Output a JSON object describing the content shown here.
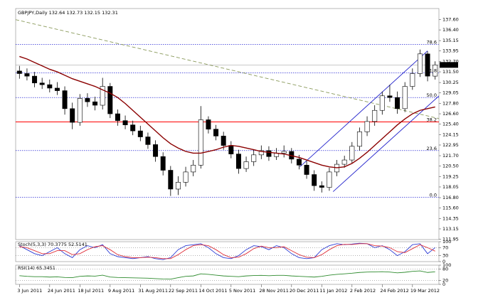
{
  "chart_data": [
    {
      "type": "candlestick",
      "title": "GBPJPY,Daily 132.64 132.73 132.15 132.31",
      "categories": [
        "3 Jun 2011",
        null,
        null,
        null,
        "24 Jun 2011",
        null,
        null,
        null,
        "18 Jul 2011",
        null,
        null,
        null,
        "9 Aug 2011",
        null,
        null,
        null,
        "31 Aug 2011",
        null,
        null,
        null,
        "22 Sep 2011",
        null,
        null,
        null,
        "14 Oct 2011",
        null,
        null,
        null,
        "5 Nov 2011",
        null,
        null,
        null,
        "28 Nov 2011",
        null,
        null,
        null,
        "20 Dec 2011",
        null,
        null,
        null,
        "11 Jan 2012",
        null,
        null,
        null,
        "2 Feb 2012",
        null,
        null,
        null,
        "24 Feb 2012",
        null,
        null,
        null,
        "19 Mar 2012",
        null,
        null,
        null
      ],
      "open": [
        131.6,
        131.3,
        131.0,
        130.2,
        130.0,
        129.6,
        129.3,
        127.2,
        125.6,
        128.4,
        128.0,
        127.6,
        129.8,
        126.6,
        125.8,
        125.3,
        124.6,
        123.9,
        123.0,
        121.6,
        120.0,
        117.8,
        118.6,
        119.8,
        120.6,
        125.9,
        124.8,
        124.0,
        122.9,
        121.9,
        120.2,
        121.0,
        121.8,
        122.3,
        121.6,
        122.0,
        122.2,
        121.3,
        120.6,
        119.5,
        118.2,
        118.0,
        119.8,
        120.7,
        121.2,
        122.8,
        124.5,
        125.7,
        127.0,
        128.7,
        128.5,
        127.2,
        129.8,
        131.3,
        133.6,
        131.0
      ],
      "high": [
        132.2,
        131.9,
        131.5,
        130.8,
        130.6,
        130.3,
        129.8,
        127.9,
        128.9,
        129.0,
        128.6,
        130.8,
        130.2,
        127.1,
        126.4,
        125.8,
        125.2,
        124.4,
        123.5,
        122.1,
        120.5,
        119.3,
        120.4,
        121.2,
        127.5,
        126.3,
        125.3,
        124.5,
        123.4,
        122.4,
        121.6,
        122.4,
        122.9,
        122.8,
        122.6,
        122.9,
        122.6,
        121.8,
        121.1,
        120.0,
        118.7,
        120.3,
        121.2,
        121.7,
        123.3,
        125.0,
        126.3,
        127.6,
        129.2,
        130.0,
        129.2,
        130.3,
        131.9,
        134.1,
        133.9,
        132.73
      ],
      "low": [
        130.7,
        130.5,
        129.7,
        129.5,
        129.1,
        128.8,
        126.5,
        124.8,
        125.2,
        127.4,
        127.0,
        127.1,
        126.1,
        125.2,
        124.8,
        124.1,
        123.4,
        122.5,
        121.0,
        119.4,
        117.0,
        117.1,
        118.1,
        119.3,
        120.2,
        124.3,
        123.5,
        122.4,
        121.4,
        119.6,
        119.8,
        120.5,
        121.3,
        121.1,
        121.2,
        121.5,
        120.8,
        120.1,
        119.0,
        117.6,
        117.4,
        117.6,
        119.3,
        120.3,
        120.8,
        122.3,
        124.0,
        125.2,
        126.5,
        128.0,
        126.6,
        126.8,
        129.4,
        130.9,
        130.4,
        130.6
      ],
      "close": [
        131.3,
        131.0,
        130.2,
        130.0,
        129.6,
        129.3,
        127.2,
        125.6,
        128.4,
        128.0,
        127.6,
        129.8,
        126.6,
        125.8,
        125.3,
        124.6,
        123.9,
        123.0,
        121.6,
        120.0,
        117.8,
        118.6,
        119.8,
        120.6,
        125.9,
        124.8,
        124.0,
        122.9,
        121.9,
        120.2,
        121.0,
        121.8,
        122.3,
        121.6,
        122.0,
        122.2,
        121.3,
        120.6,
        119.5,
        118.2,
        118.0,
        119.8,
        120.7,
        121.2,
        122.8,
        124.5,
        125.7,
        127.0,
        128.7,
        128.5,
        127.2,
        129.8,
        131.3,
        133.6,
        131.0,
        132.31
      ],
      "overlays": [
        {
          "color": "#8b0000",
          "values": [
            133.3,
            133.0,
            132.6,
            132.2,
            131.8,
            131.5,
            131.1,
            130.7,
            130.4,
            130.1,
            129.8,
            129.4,
            129.0,
            128.5,
            127.8,
            127.0,
            126.2,
            125.4,
            124.6,
            123.8,
            123.1,
            122.6,
            122.2,
            122.0,
            122.0,
            122.2,
            122.4,
            122.7,
            122.9,
            122.8,
            122.6,
            122.4,
            122.2,
            122.1,
            122.0,
            121.9,
            121.7,
            121.5,
            121.2,
            120.9,
            120.6,
            120.4,
            120.3,
            120.4,
            120.8,
            121.4,
            122.1,
            122.9,
            123.7,
            124.5,
            125.3,
            126.0,
            126.6,
            127.0,
            127.2,
            127.4
          ]
        }
      ],
      "fib_levels": {
        "labels": [
          "78.6",
          "61.8",
          "50.0",
          "38.2",
          "23.6",
          "0.0"
        ],
        "prices": [
          134.7,
          131.4,
          128.5,
          125.65,
          122.3,
          116.85
        ],
        "color": "#0000cc"
      },
      "support_line": {
        "value": 125.65,
        "color": "#ff0000"
      },
      "trendlines": [
        {
          "color": "#8a9a5b",
          "dashed": true,
          "start": [
            -0.5,
            137.6
          ],
          "end": [
            78.7,
            121.25
          ]
        },
        {
          "color": "#2222cc",
          "dashed": false,
          "start": [
            37.1,
            120.4
          ],
          "end": [
            54.0,
            133.95
          ]
        },
        {
          "color": "#2222cc",
          "dashed": false,
          "start": [
            41.5,
            117.5
          ],
          "end": [
            60.4,
            132.6
          ]
        }
      ],
      "ylim": [
        111.9,
        138.9
      ],
      "yticks": [
        {
          "value": 137.6,
          "label": "137.60"
        },
        {
          "value": 136.4,
          "label": "136.40"
        },
        {
          "value": 135.15,
          "label": "135.15"
        },
        {
          "value": 133.95,
          "label": "133.95"
        },
        {
          "value": 132.7,
          "label": "132.70"
        },
        {
          "value": 131.5,
          "label": "131.50"
        },
        {
          "value": 130.25,
          "label": "130.25"
        },
        {
          "value": 129.05,
          "label": "129.05"
        },
        {
          "value": 127.8,
          "label": "127.80"
        },
        {
          "value": 126.6,
          "label": "126.60"
        },
        {
          "value": 125.4,
          "label": "125.40"
        },
        {
          "value": 124.15,
          "label": "124.15"
        },
        {
          "value": 122.95,
          "label": "122.95"
        },
        {
          "value": 121.7,
          "label": "121.70"
        },
        {
          "value": 120.5,
          "label": "120.50"
        },
        {
          "value": 119.25,
          "label": "119.25"
        },
        {
          "value": 118.05,
          "label": "118.05"
        },
        {
          "value": 116.8,
          "label": "116.80"
        },
        {
          "value": 115.6,
          "label": "115.60"
        },
        {
          "value": 114.35,
          "label": "114.35"
        },
        {
          "value": 113.15,
          "label": "113.15"
        },
        {
          "value": 111.95,
          "label": "111.95"
        }
      ]
    },
    {
      "type": "line",
      "title": "Stoch(5,3,3) 70.3775 52.5141",
      "series": [
        {
          "color": "#2b3bd6",
          "values": [
            80,
            60,
            40,
            30,
            50,
            70,
            40,
            20,
            60,
            80,
            70,
            85,
            40,
            25,
            20,
            15,
            20,
            25,
            15,
            10,
            20,
            60,
            80,
            85,
            90,
            70,
            40,
            20,
            15,
            30,
            60,
            80,
            75,
            60,
            80,
            70,
            40,
            20,
            15,
            20,
            60,
            80,
            90,
            85,
            88,
            92,
            90,
            70,
            80,
            60,
            30,
            50,
            85,
            90,
            40,
            70.3775
          ]
        },
        {
          "color": "#e0303a",
          "values": [
            75,
            70,
            55,
            40,
            40,
            55,
            55,
            35,
            40,
            60,
            75,
            80,
            60,
            35,
            25,
            20,
            20,
            22,
            20,
            15,
            15,
            35,
            60,
            80,
            85,
            80,
            60,
            35,
            20,
            22,
            40,
            65,
            78,
            70,
            70,
            75,
            55,
            35,
            22,
            20,
            35,
            60,
            80,
            87,
            86,
            90,
            90,
            80,
            78,
            70,
            50,
            45,
            65,
            85,
            70,
            52.5141
          ]
        }
      ],
      "ylim": [
        0,
        100
      ],
      "yticks": [
        0,
        30,
        70,
        100
      ]
    },
    {
      "type": "line",
      "title": "RSI(14) 65.3451",
      "series": [
        {
          "color": "#2e8b2e",
          "values": [
            45,
            42,
            40,
            40,
            38,
            39,
            36,
            35,
            42,
            44,
            43,
            48,
            38,
            36,
            35,
            34,
            33,
            32,
            30,
            28,
            27,
            35,
            42,
            44,
            55,
            52,
            48,
            44,
            42,
            40,
            44,
            46,
            47,
            45,
            47,
            47,
            44,
            42,
            40,
            38,
            42,
            48,
            52,
            55,
            58,
            62,
            64,
            65,
            66,
            64,
            60,
            63,
            68,
            70,
            62,
            65.3451
          ]
        }
      ],
      "ylim": [
        0,
        100
      ],
      "yticks": [
        0,
        20,
        80,
        100
      ]
    }
  ]
}
